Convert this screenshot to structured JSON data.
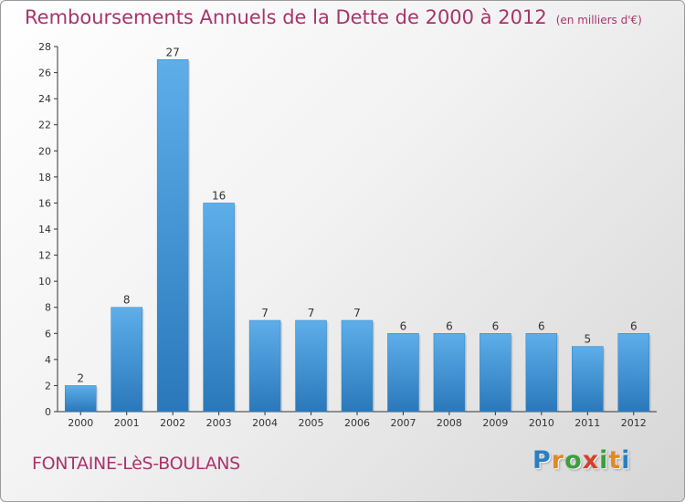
{
  "chart_data": {
    "type": "bar",
    "title": "Remboursements Annuels de la Dette de 2000 à 2012",
    "subtitle": "(en milliers d'€)",
    "categories": [
      "2000",
      "2001",
      "2002",
      "2003",
      "2004",
      "2005",
      "2006",
      "2007",
      "2008",
      "2009",
      "2010",
      "2011",
      "2012"
    ],
    "values": [
      2,
      8,
      27,
      16,
      7,
      7,
      7,
      6,
      6,
      6,
      6,
      5,
      6
    ],
    "yticks": [
      "0",
      "2",
      "4",
      "6",
      "8",
      "10",
      "12",
      "14",
      "16",
      "18",
      "20",
      "22",
      "24",
      "26",
      "28"
    ],
    "ylim": [
      0,
      28
    ],
    "xlabel": "",
    "ylabel": "",
    "grid": false,
    "bar_color": "#3d8fd1"
  },
  "commune": "FONTAINE-LèS-BOULANS",
  "logo": {
    "letters": [
      "P",
      "r",
      "o",
      "x",
      "i",
      "t",
      "i"
    ],
    "colors": [
      "#2a7fc4",
      "#e0892a",
      "#3c9e3c",
      "#d6402b",
      "#3c9e3c",
      "#e0892a",
      "#2a7fc4"
    ]
  }
}
